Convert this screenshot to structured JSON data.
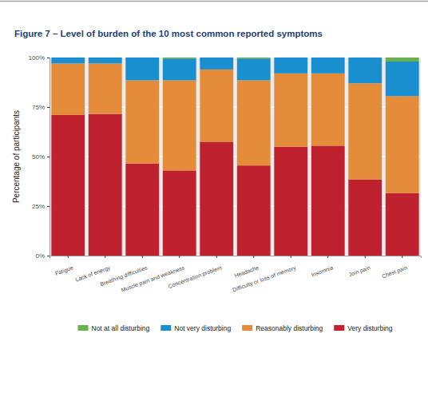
{
  "chart_data": {
    "type": "bar",
    "title": "Figure 7 – Level of burden of the 10 most common reported symptoms",
    "y_label": "Percentage of participants",
    "categories": [
      "Fatigue",
      "Lack of energy",
      "Breathing difficulties",
      "Muscle pain and weakness",
      "Concentration problem",
      "Headache",
      "Difficulty or loss of memory",
      "Insomnia",
      "Join pain",
      "Chest pain"
    ],
    "series": [
      {
        "name": "Not at all disturbing",
        "color": "#6ab04c",
        "values": [
          0,
          0,
          0,
          0.5,
          0,
          0.5,
          0,
          0,
          0,
          2
        ]
      },
      {
        "name": "Not very disturbing",
        "color": "#1a8fcf",
        "values": [
          3,
          3,
          11.5,
          11,
          6,
          11,
          8,
          8,
          13,
          17.5
        ]
      },
      {
        "name": "Reasonably disturbing",
        "color": "#e58c3a",
        "values": [
          26,
          25.5,
          42,
          45.5,
          36.5,
          43,
          37,
          36.5,
          48.5,
          49
        ]
      },
      {
        "name": "Very disturbing",
        "color": "#c0212e",
        "values": [
          71,
          71.5,
          46.5,
          43,
          57.5,
          45.5,
          55,
          55.5,
          38.5,
          31.5
        ]
      }
    ],
    "stacked": true,
    "ylim": [
      0,
      100
    ],
    "yticks": [
      {
        "value": 0,
        "label": "0%"
      },
      {
        "value": 25,
        "label": "25%"
      },
      {
        "value": 50,
        "label": "50%"
      },
      {
        "value": 75,
        "label": "75%"
      },
      {
        "value": 100,
        "label": "100%"
      }
    ],
    "grid": true,
    "legend": "bottom"
  }
}
